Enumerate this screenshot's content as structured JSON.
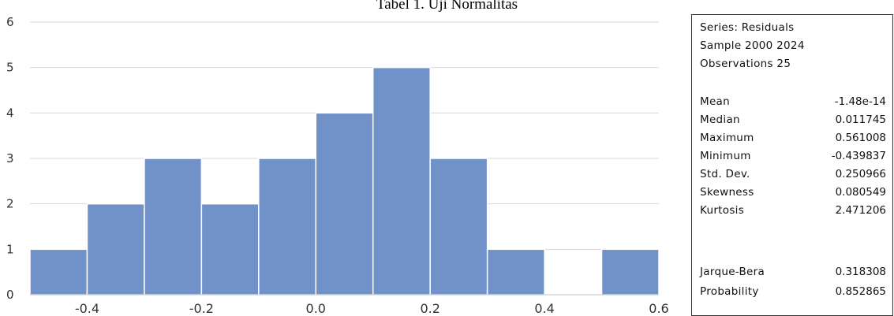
{
  "caption": "Tabel 1. Uji Normalitas",
  "chart_data": {
    "type": "bar",
    "subtype": "histogram",
    "bins": [
      {
        "start": -0.5,
        "end": -0.4,
        "count": 1
      },
      {
        "start": -0.4,
        "end": -0.3,
        "count": 2
      },
      {
        "start": -0.3,
        "end": -0.2,
        "count": 3
      },
      {
        "start": -0.2,
        "end": -0.1,
        "count": 2
      },
      {
        "start": -0.1,
        "end": 0.0,
        "count": 3
      },
      {
        "start": 0.0,
        "end": 0.1,
        "count": 4
      },
      {
        "start": 0.1,
        "end": 0.2,
        "count": 5
      },
      {
        "start": 0.2,
        "end": 0.3,
        "count": 3
      },
      {
        "start": 0.3,
        "end": 0.4,
        "count": 1
      },
      {
        "start": 0.4,
        "end": 0.5,
        "count": 0
      },
      {
        "start": 0.5,
        "end": 0.6,
        "count": 1
      }
    ],
    "xlim": [
      -0.5,
      0.6
    ],
    "ylim": [
      0,
      6
    ],
    "xticks": [
      "-0.4",
      "-0.2",
      "0.0",
      "0.2",
      "0.4",
      "0.6"
    ],
    "xtick_values": [
      -0.4,
      -0.2,
      0.0,
      0.2,
      0.4,
      0.6
    ],
    "yticks": [
      "0",
      "1",
      "2",
      "3",
      "4",
      "5",
      "6"
    ],
    "ytick_values": [
      0,
      1,
      2,
      3,
      4,
      5,
      6
    ],
    "grid": true,
    "bar_color": "#7092c8",
    "grid_color": "#d9d9d9"
  },
  "stats": {
    "series_line": "Series: Residuals",
    "sample_line": "Sample 2000 2024",
    "observations_line": "Observations 25",
    "rows": [
      {
        "label": "Mean",
        "value": "-1.48e-14"
      },
      {
        "label": "Median",
        "value": "0.011745"
      },
      {
        "label": "Maximum",
        "value": "0.561008"
      },
      {
        "label": "Minimum",
        "value": "-0.439837"
      },
      {
        "label": "Std. Dev.",
        "value": "0.250966"
      },
      {
        "label": "Skewness",
        "value": "0.080549"
      },
      {
        "label": "Kurtosis",
        "value": "2.471206"
      }
    ],
    "test_rows": [
      {
        "label": "Jarque-Bera",
        "value": "0.318308"
      },
      {
        "label": "Probability",
        "value": "0.852865"
      }
    ]
  }
}
